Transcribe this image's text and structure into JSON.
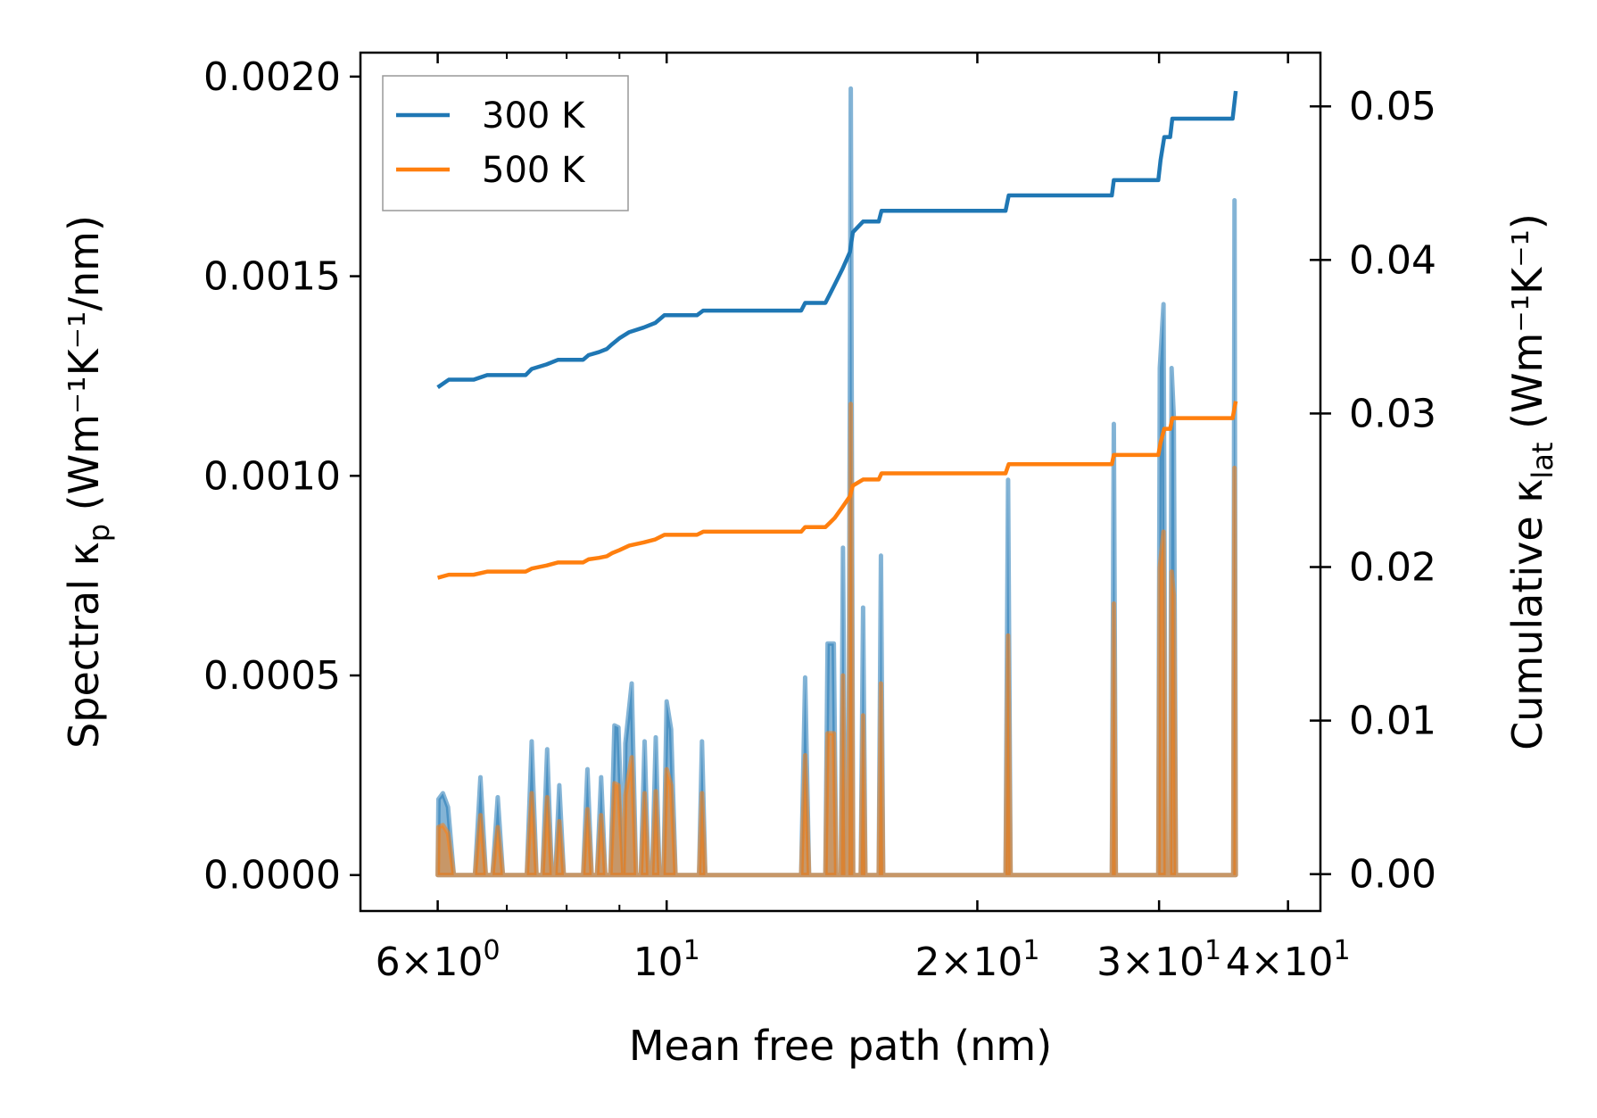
{
  "chart_data": {
    "type": "line",
    "title": "",
    "xlabel": "Mean free path (nm)",
    "x_scale": "log",
    "xlim": [
      5.05,
      43.0
    ],
    "x_ticks": [
      {
        "value": 6,
        "mantissa": "6",
        "exponent": "0"
      },
      {
        "value": 10,
        "mantissa": "",
        "exponent": "1"
      },
      {
        "value": 20,
        "mantissa": "2",
        "exponent": "1"
      },
      {
        "value": 30,
        "mantissa": "3",
        "exponent": "1"
      },
      {
        "value": 40,
        "mantissa": "4",
        "exponent": "1"
      }
    ],
    "x_minor_ticks": [
      7,
      8,
      9
    ],
    "y_left": {
      "label_main": "Spectral κ",
      "label_sub": "p",
      "label_units": "(Wm⁻¹K⁻¹/nm)",
      "ylim": [
        -9e-05,
        0.00206
      ],
      "ticks": [
        "0.0000",
        "0.0005",
        "0.0010",
        "0.0015",
        "0.0020"
      ],
      "tick_values": [
        0,
        0.0005,
        0.001,
        0.0015,
        0.002
      ]
    },
    "y_right": {
      "label_main": "Cumulative κ",
      "label_sub": "lat",
      "label_units": "(Wm⁻¹K⁻¹)",
      "ylim": [
        -0.0024,
        0.0535
      ],
      "ticks": [
        "0.00",
        "0.01",
        "0.02",
        "0.03",
        "0.04",
        "0.05"
      ],
      "tick_values": [
        0,
        0.01,
        0.02,
        0.03,
        0.04,
        0.05
      ]
    },
    "legend": {
      "position": "top-left",
      "entries": [
        {
          "label": "300 K",
          "color": "#1f77b4"
        },
        {
          "label": "500 K",
          "color": "#ff7f0e"
        }
      ]
    },
    "spectral_series": [
      {
        "name": "300 K",
        "color": "#1f77b4",
        "points": [
          [
            6.0,
            0
          ],
          [
            6.01,
            0.00019
          ],
          [
            6.07,
            0.000205
          ],
          [
            6.14,
            0.00017
          ],
          [
            6.22,
            0
          ],
          [
            6.52,
            0
          ],
          [
            6.6,
            0.000245
          ],
          [
            6.68,
            0
          ],
          [
            6.78,
            0
          ],
          [
            6.86,
            0.000195
          ],
          [
            6.94,
            0
          ],
          [
            7.32,
            0
          ],
          [
            7.4,
            0.000335
          ],
          [
            7.48,
            0
          ],
          [
            7.58,
            0
          ],
          [
            7.66,
            0.000315
          ],
          [
            7.74,
            0
          ],
          [
            7.8,
            0
          ],
          [
            7.87,
            0.000225
          ],
          [
            7.95,
            0
          ],
          [
            8.3,
            0
          ],
          [
            8.38,
            0.000265
          ],
          [
            8.46,
            0
          ],
          [
            8.56,
            0
          ],
          [
            8.64,
            0.000245
          ],
          [
            8.72,
            0
          ],
          [
            8.82,
            0
          ],
          [
            8.9,
            0.000375
          ],
          [
            8.98,
            0.00037
          ],
          [
            9.08,
            0
          ],
          [
            9.12,
            0.00033
          ],
          [
            9.25,
            0.00048
          ],
          [
            9.34,
            0
          ],
          [
            9.44,
            0
          ],
          [
            9.52,
            0.000335
          ],
          [
            9.6,
            0
          ],
          [
            9.68,
            0
          ],
          [
            9.76,
            0.000345
          ],
          [
            9.84,
            0
          ],
          [
            9.93,
            0
          ],
          [
            10.0,
            0.000435
          ],
          [
            10.1,
            0.000365
          ],
          [
            10.2,
            0
          ],
          [
            10.75,
            0
          ],
          [
            10.82,
            0.000335
          ],
          [
            10.9,
            0
          ],
          [
            13.5,
            0
          ],
          [
            13.62,
            0.000495
          ],
          [
            13.74,
            0
          ],
          [
            14.25,
            0
          ],
          [
            14.32,
            0.00058
          ],
          [
            14.52,
            0.00058
          ],
          [
            14.6,
            0
          ],
          [
            14.75,
            0
          ],
          [
            14.82,
            0.00082
          ],
          [
            14.9,
            0
          ],
          [
            15.0,
            0
          ],
          [
            15.08,
            0.00197
          ],
          [
            15.16,
            0
          ],
          [
            15.42,
            0
          ],
          [
            15.5,
            0.00067
          ],
          [
            15.58,
            0
          ],
          [
            16.05,
            0
          ],
          [
            16.13,
            0.0008
          ],
          [
            16.21,
            0
          ],
          [
            21.3,
            0
          ],
          [
            21.42,
            0.00099
          ],
          [
            21.54,
            0
          ],
          [
            27.0,
            0
          ],
          [
            27.12,
            0.00113
          ],
          [
            27.24,
            0
          ],
          [
            29.95,
            0
          ],
          [
            30.05,
            0.00127
          ],
          [
            30.3,
            0.00143
          ],
          [
            30.45,
            0
          ],
          [
            30.75,
            0
          ],
          [
            30.85,
            0.00127
          ],
          [
            31.0,
            0.00115
          ],
          [
            31.15,
            0
          ],
          [
            35.4,
            0
          ],
          [
            35.5,
            0.00169
          ],
          [
            35.6,
            0
          ]
        ]
      },
      {
        "name": "500 K",
        "color": "#ff7f0e",
        "points": [
          [
            6.0,
            0
          ],
          [
            6.01,
            0.00012
          ],
          [
            6.07,
            0.000125
          ],
          [
            6.14,
            0.000105
          ],
          [
            6.22,
            0
          ],
          [
            6.52,
            0
          ],
          [
            6.6,
            0.00015
          ],
          [
            6.68,
            0
          ],
          [
            6.78,
            0
          ],
          [
            6.86,
            0.00012
          ],
          [
            6.94,
            0
          ],
          [
            7.32,
            0
          ],
          [
            7.4,
            0.000205
          ],
          [
            7.48,
            0
          ],
          [
            7.58,
            0
          ],
          [
            7.66,
            0.000195
          ],
          [
            7.74,
            0
          ],
          [
            7.8,
            0
          ],
          [
            7.87,
            0.000135
          ],
          [
            7.95,
            0
          ],
          [
            8.3,
            0
          ],
          [
            8.38,
            0.000165
          ],
          [
            8.46,
            0
          ],
          [
            8.56,
            0
          ],
          [
            8.64,
            0.00015
          ],
          [
            8.72,
            0
          ],
          [
            8.82,
            0
          ],
          [
            8.9,
            0.00023
          ],
          [
            8.98,
            0.000225
          ],
          [
            9.08,
            0
          ],
          [
            9.12,
            0.0002
          ],
          [
            9.25,
            0.000295
          ],
          [
            9.34,
            0
          ],
          [
            9.44,
            0
          ],
          [
            9.52,
            0.000205
          ],
          [
            9.6,
            0
          ],
          [
            9.68,
            0
          ],
          [
            9.76,
            0.00021
          ],
          [
            9.84,
            0
          ],
          [
            9.93,
            0
          ],
          [
            10.0,
            0.000265
          ],
          [
            10.1,
            0.000225
          ],
          [
            10.2,
            0
          ],
          [
            10.75,
            0
          ],
          [
            10.82,
            0.000205
          ],
          [
            10.9,
            0
          ],
          [
            13.5,
            0
          ],
          [
            13.62,
            0.0003
          ],
          [
            13.74,
            0
          ],
          [
            14.25,
            0
          ],
          [
            14.32,
            0.000355
          ],
          [
            14.52,
            0.000355
          ],
          [
            14.6,
            0
          ],
          [
            14.75,
            0
          ],
          [
            14.82,
            0.0005
          ],
          [
            14.9,
            0
          ],
          [
            15.0,
            0
          ],
          [
            15.08,
            0.00118
          ],
          [
            15.16,
            0
          ],
          [
            15.42,
            0
          ],
          [
            15.5,
            0.0004
          ],
          [
            15.58,
            0
          ],
          [
            16.05,
            0
          ],
          [
            16.13,
            0.00048
          ],
          [
            16.21,
            0
          ],
          [
            21.3,
            0
          ],
          [
            21.42,
            0.0006
          ],
          [
            21.54,
            0
          ],
          [
            27.0,
            0
          ],
          [
            27.12,
            0.00068
          ],
          [
            27.24,
            0
          ],
          [
            29.95,
            0
          ],
          [
            30.05,
            0.00077
          ],
          [
            30.3,
            0.00086
          ],
          [
            30.45,
            0
          ],
          [
            30.75,
            0
          ],
          [
            30.85,
            0.00076
          ],
          [
            31.0,
            0.0007
          ],
          [
            31.15,
            0
          ],
          [
            35.4,
            0
          ],
          [
            35.5,
            0.00102
          ],
          [
            35.6,
            0
          ]
        ]
      }
    ],
    "cumulative_series": [
      {
        "name": "300 K",
        "color": "#1f77b4",
        "points": [
          [
            6.0,
            0.0317
          ],
          [
            6.15,
            0.0322
          ],
          [
            6.5,
            0.0322
          ],
          [
            6.7,
            0.0325
          ],
          [
            7.3,
            0.0325
          ],
          [
            7.4,
            0.0329
          ],
          [
            7.65,
            0.0332
          ],
          [
            7.85,
            0.0335
          ],
          [
            8.3,
            0.0335
          ],
          [
            8.4,
            0.0338
          ],
          [
            8.6,
            0.034
          ],
          [
            8.75,
            0.0342
          ],
          [
            8.85,
            0.0345
          ],
          [
            9.0,
            0.0349
          ],
          [
            9.2,
            0.0353
          ],
          [
            9.5,
            0.0356
          ],
          [
            9.75,
            0.0359
          ],
          [
            9.95,
            0.0364
          ],
          [
            10.7,
            0.0364
          ],
          [
            10.85,
            0.0367
          ],
          [
            13.5,
            0.0367
          ],
          [
            13.62,
            0.0372
          ],
          [
            14.25,
            0.0372
          ],
          [
            14.4,
            0.0378
          ],
          [
            14.55,
            0.0384
          ],
          [
            14.8,
            0.0394
          ],
          [
            15.05,
            0.0405
          ],
          [
            15.15,
            0.0418
          ],
          [
            15.5,
            0.0425
          ],
          [
            16.05,
            0.0425
          ],
          [
            16.15,
            0.0432
          ],
          [
            21.3,
            0.0432
          ],
          [
            21.45,
            0.0442
          ],
          [
            27.0,
            0.0442
          ],
          [
            27.12,
            0.0452
          ],
          [
            29.95,
            0.0452
          ],
          [
            30.1,
            0.0465
          ],
          [
            30.35,
            0.048
          ],
          [
            30.75,
            0.048
          ],
          [
            30.9,
            0.0492
          ],
          [
            35.35,
            0.0492
          ],
          [
            35.6,
            0.051
          ]
        ]
      },
      {
        "name": "500 K",
        "color": "#ff7f0e",
        "points": [
          [
            6.0,
            0.0193
          ],
          [
            6.15,
            0.0195
          ],
          [
            6.5,
            0.0195
          ],
          [
            6.7,
            0.0197
          ],
          [
            7.3,
            0.0197
          ],
          [
            7.4,
            0.0199
          ],
          [
            7.65,
            0.0201
          ],
          [
            7.85,
            0.0203
          ],
          [
            8.3,
            0.0203
          ],
          [
            8.4,
            0.0205
          ],
          [
            8.6,
            0.0206
          ],
          [
            8.75,
            0.0207
          ],
          [
            8.85,
            0.0209
          ],
          [
            9.0,
            0.0211
          ],
          [
            9.2,
            0.0214
          ],
          [
            9.5,
            0.0216
          ],
          [
            9.75,
            0.0218
          ],
          [
            9.95,
            0.0221
          ],
          [
            10.7,
            0.0221
          ],
          [
            10.85,
            0.0223
          ],
          [
            13.5,
            0.0223
          ],
          [
            13.62,
            0.0226
          ],
          [
            14.25,
            0.0226
          ],
          [
            14.4,
            0.0229
          ],
          [
            14.55,
            0.0232
          ],
          [
            14.8,
            0.0239
          ],
          [
            15.05,
            0.0246
          ],
          [
            15.15,
            0.0253
          ],
          [
            15.5,
            0.0257
          ],
          [
            16.05,
            0.0257
          ],
          [
            16.15,
            0.0261
          ],
          [
            21.3,
            0.0261
          ],
          [
            21.45,
            0.0267
          ],
          [
            27.0,
            0.0267
          ],
          [
            27.12,
            0.0273
          ],
          [
            29.95,
            0.0273
          ],
          [
            30.1,
            0.0281
          ],
          [
            30.35,
            0.029
          ],
          [
            30.75,
            0.029
          ],
          [
            30.9,
            0.0297
          ],
          [
            35.35,
            0.0297
          ],
          [
            35.6,
            0.0308
          ]
        ]
      }
    ]
  }
}
